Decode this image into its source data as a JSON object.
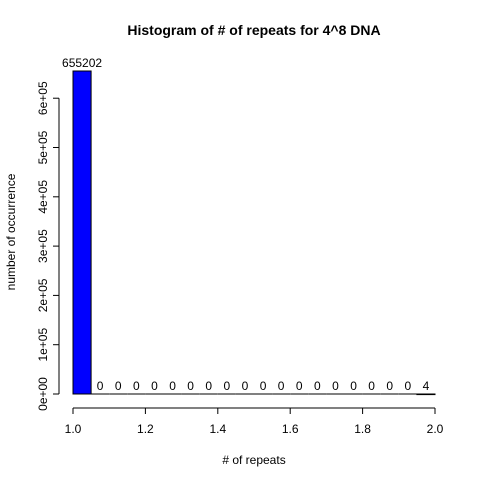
{
  "chart_data": {
    "type": "bar",
    "title": "Histogram of # of repeats for 4^8 DNA",
    "xlabel": "# of repeats",
    "ylabel": "number of occurrence",
    "xlim": [
      1.0,
      2.0
    ],
    "ylim": [
      0,
      655202
    ],
    "bins": [
      {
        "x0": 1.0,
        "x1": 1.05,
        "value": 655202
      },
      {
        "x0": 1.05,
        "x1": 1.1,
        "value": 0
      },
      {
        "x0": 1.1,
        "x1": 1.15,
        "value": 0
      },
      {
        "x0": 1.15,
        "x1": 1.2,
        "value": 0
      },
      {
        "x0": 1.2,
        "x1": 1.25,
        "value": 0
      },
      {
        "x0": 1.25,
        "x1": 1.3,
        "value": 0
      },
      {
        "x0": 1.3,
        "x1": 1.35,
        "value": 0
      },
      {
        "x0": 1.35,
        "x1": 1.4,
        "value": 0
      },
      {
        "x0": 1.4,
        "x1": 1.45,
        "value": 0
      },
      {
        "x0": 1.45,
        "x1": 1.5,
        "value": 0
      },
      {
        "x0": 1.5,
        "x1": 1.55,
        "value": 0
      },
      {
        "x0": 1.55,
        "x1": 1.6,
        "value": 0
      },
      {
        "x0": 1.6,
        "x1": 1.65,
        "value": 0
      },
      {
        "x0": 1.65,
        "x1": 1.7,
        "value": 0
      },
      {
        "x0": 1.7,
        "x1": 1.75,
        "value": 0
      },
      {
        "x0": 1.75,
        "x1": 1.8,
        "value": 0
      },
      {
        "x0": 1.8,
        "x1": 1.85,
        "value": 0
      },
      {
        "x0": 1.85,
        "x1": 1.9,
        "value": 0
      },
      {
        "x0": 1.9,
        "x1": 1.95,
        "value": 0
      },
      {
        "x0": 1.95,
        "x1": 2.0,
        "value": 4
      }
    ],
    "data_labels": [
      "655202",
      "0",
      "0",
      "0",
      "0",
      "0",
      "0",
      "0",
      "0",
      "0",
      "0",
      "0",
      "0",
      "0",
      "0",
      "0",
      "0",
      "0",
      "0",
      "4"
    ],
    "x_ticks": [
      1.0,
      1.2,
      1.4,
      1.6,
      1.8,
      2.0
    ],
    "x_tick_labels": [
      "1.0",
      "1.2",
      "1.4",
      "1.6",
      "1.8",
      "2.0"
    ],
    "y_ticks": [
      0,
      100000,
      200000,
      300000,
      400000,
      500000,
      600000
    ],
    "y_tick_labels": [
      "0e+00",
      "1e+05",
      "2e+05",
      "3e+05",
      "4e+05",
      "5e+05",
      "6e+05"
    ],
    "bar_color": "#0000ff",
    "bar_edge_color": "#000000",
    "grid": false
  }
}
